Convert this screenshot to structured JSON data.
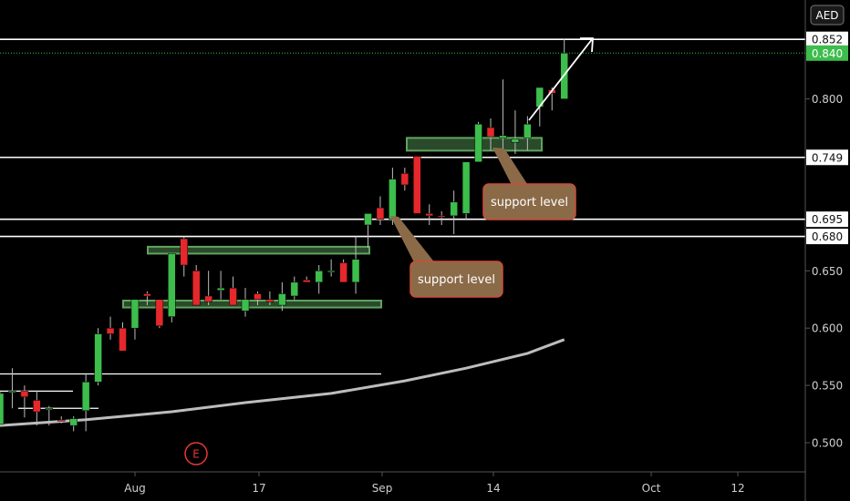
{
  "currency": "AED",
  "colors": {
    "background": "#000000",
    "up": "#3dbd4c",
    "down": "#e5282b",
    "support_zone": "#5fa45f",
    "note_fill": "#8b6a48",
    "note_border": "#d24a3c",
    "moving_average": "#bdbdbd",
    "lines": "#ffffff",
    "last_price": "#3dbd4c",
    "earnings": "#e53935"
  },
  "chart_data": {
    "type": "candlestick",
    "price_unit": "AED",
    "x_axis_labels": [
      "Aug",
      "17",
      "Sep",
      "14",
      "Oct",
      "12"
    ],
    "y_axis_ticks": [
      "0.500",
      "0.550",
      "0.600",
      "0.650",
      "0.800"
    ],
    "y_range": [
      0.475,
      0.878
    ],
    "horizontal_levels": [
      {
        "value": 0.852,
        "label": "0.852"
      },
      {
        "value": 0.749,
        "label": "0.749"
      },
      {
        "value": 0.695,
        "label": "0.695"
      },
      {
        "value": 0.68,
        "label": "0.680"
      }
    ],
    "last_price": {
      "value": 0.84,
      "label": "0.840"
    },
    "candles": [
      {
        "date": "Jul 27",
        "open": 0.516,
        "high": 0.545,
        "low": 0.515,
        "close": 0.543
      },
      {
        "date": "Jul 28",
        "open": 0.545,
        "high": 0.565,
        "low": 0.53,
        "close": 0.545
      },
      {
        "date": "Jul 29",
        "open": 0.545,
        "high": 0.55,
        "low": 0.522,
        "close": 0.54
      },
      {
        "date": "Jul 30",
        "open": 0.537,
        "high": 0.545,
        "low": 0.515,
        "close": 0.527
      },
      {
        "date": "Jul 31",
        "open": 0.53,
        "high": 0.532,
        "low": 0.515,
        "close": 0.53
      },
      {
        "date": "Aug 03",
        "open": 0.52,
        "high": 0.523,
        "low": 0.517,
        "close": 0.519
      },
      {
        "date": "Aug 04",
        "open": 0.515,
        "high": 0.523,
        "low": 0.51,
        "close": 0.521
      },
      {
        "date": "Aug 05",
        "open": 0.528,
        "high": 0.56,
        "low": 0.51,
        "close": 0.553
      },
      {
        "date": "Aug 06",
        "open": 0.553,
        "high": 0.6,
        "low": 0.55,
        "close": 0.595
      },
      {
        "date": "Aug 07",
        "open": 0.6,
        "high": 0.61,
        "low": 0.59,
        "close": 0.595
      },
      {
        "date": "Aug 10",
        "open": 0.6,
        "high": 0.605,
        "low": 0.58,
        "close": 0.58
      },
      {
        "date": "Aug 11",
        "open": 0.6,
        "high": 0.625,
        "low": 0.59,
        "close": 0.625
      },
      {
        "date": "Aug 12",
        "open": 0.63,
        "high": 0.632,
        "low": 0.62,
        "close": 0.628
      },
      {
        "date": "Aug 13",
        "open": 0.625,
        "high": 0.625,
        "low": 0.6,
        "close": 0.602
      },
      {
        "date": "Aug 14",
        "open": 0.61,
        "high": 0.665,
        "low": 0.605,
        "close": 0.665
      },
      {
        "date": "Aug 17",
        "open": 0.678,
        "high": 0.68,
        "low": 0.645,
        "close": 0.655
      },
      {
        "date": "Aug 18",
        "open": 0.65,
        "high": 0.655,
        "low": 0.62,
        "close": 0.62
      },
      {
        "date": "Aug 19",
        "open": 0.628,
        "high": 0.65,
        "low": 0.62,
        "close": 0.623
      },
      {
        "date": "Aug 20",
        "open": 0.633,
        "high": 0.65,
        "low": 0.625,
        "close": 0.635
      },
      {
        "date": "Aug 21",
        "open": 0.635,
        "high": 0.645,
        "low": 0.62,
        "close": 0.62
      },
      {
        "date": "Aug 24",
        "open": 0.615,
        "high": 0.635,
        "low": 0.61,
        "close": 0.625
      },
      {
        "date": "Aug 25",
        "open": 0.63,
        "high": 0.632,
        "low": 0.62,
        "close": 0.625
      },
      {
        "date": "Aug 26",
        "open": 0.625,
        "high": 0.632,
        "low": 0.62,
        "close": 0.623
      },
      {
        "date": "Aug 27",
        "open": 0.62,
        "high": 0.64,
        "low": 0.615,
        "close": 0.63
      },
      {
        "date": "Aug 28",
        "open": 0.628,
        "high": 0.645,
        "low": 0.625,
        "close": 0.64
      },
      {
        "date": "Aug 31",
        "open": 0.642,
        "high": 0.645,
        "low": 0.64,
        "close": 0.64
      },
      {
        "date": "Sep 01",
        "open": 0.64,
        "high": 0.655,
        "low": 0.63,
        "close": 0.65
      },
      {
        "date": "Sep 02",
        "open": 0.65,
        "high": 0.66,
        "low": 0.645,
        "close": 0.65
      },
      {
        "date": "Sep 03",
        "open": 0.657,
        "high": 0.66,
        "low": 0.64,
        "close": 0.64
      },
      {
        "date": "Sep 04",
        "open": 0.64,
        "high": 0.68,
        "low": 0.63,
        "close": 0.66
      },
      {
        "date": "Sep 07",
        "open": 0.69,
        "high": 0.7,
        "low": 0.67,
        "close": 0.7
      },
      {
        "date": "Sep 08",
        "open": 0.705,
        "high": 0.715,
        "low": 0.69,
        "close": 0.695
      },
      {
        "date": "Sep 09",
        "open": 0.695,
        "high": 0.74,
        "low": 0.69,
        "close": 0.73
      },
      {
        "date": "Sep 10",
        "open": 0.735,
        "high": 0.74,
        "low": 0.72,
        "close": 0.725
      },
      {
        "date": "Sep 11",
        "open": 0.75,
        "high": 0.75,
        "low": 0.7,
        "close": 0.7
      },
      {
        "date": "Sep 14",
        "open": 0.7,
        "high": 0.708,
        "low": 0.69,
        "close": 0.698
      },
      {
        "date": "Sep 15",
        "open": 0.698,
        "high": 0.702,
        "low": 0.69,
        "close": 0.697
      },
      {
        "date": "Sep 16",
        "open": 0.698,
        "high": 0.72,
        "low": 0.682,
        "close": 0.71
      },
      {
        "date": "Sep 17",
        "open": 0.7,
        "high": 0.745,
        "low": 0.695,
        "close": 0.745
      },
      {
        "date": "Sep 18",
        "open": 0.745,
        "high": 0.78,
        "low": 0.745,
        "close": 0.778
      },
      {
        "date": "Sep 21",
        "open": 0.775,
        "high": 0.783,
        "low": 0.755,
        "close": 0.767
      },
      {
        "date": "Sep 22",
        "open": 0.766,
        "high": 0.817,
        "low": 0.752,
        "close": 0.768
      },
      {
        "date": "Sep 23",
        "open": 0.762,
        "high": 0.79,
        "low": 0.752,
        "close": 0.765
      },
      {
        "date": "Sep 24",
        "open": 0.766,
        "high": 0.785,
        "low": 0.755,
        "close": 0.778
      },
      {
        "date": "Sep 25",
        "open": 0.793,
        "high": 0.81,
        "low": 0.776,
        "close": 0.81
      },
      {
        "date": "Sep 28",
        "open": 0.808,
        "high": 0.81,
        "low": 0.79,
        "close": 0.805
      },
      {
        "date": "Sep 29",
        "open": 0.8,
        "high": 0.852,
        "low": 0.8,
        "close": 0.84
      }
    ],
    "moving_average": [
      {
        "date": "Jul 27",
        "value": 0.515
      },
      {
        "date": "Aug 05",
        "value": 0.52
      },
      {
        "date": "Aug 14",
        "value": 0.527
      },
      {
        "date": "Aug 24",
        "value": 0.535
      },
      {
        "date": "Sep 02",
        "value": 0.543
      },
      {
        "date": "Sep 10",
        "value": 0.554
      },
      {
        "date": "Sep 17",
        "value": 0.565
      },
      {
        "date": "Sep 24",
        "value": 0.578
      },
      {
        "date": "Sep 29",
        "value": 0.59
      }
    ],
    "annotations": {
      "support_zones": [
        {
          "start": "Aug 13",
          "end": "Sep 04",
          "low": 0.618,
          "high": 0.624
        },
        {
          "start": "Aug 14",
          "end": "Sep 04",
          "low": 0.665,
          "high": 0.671
        },
        {
          "start": "Sep 09",
          "end": "Sep 25",
          "low": 0.76,
          "high": 0.766
        }
      ],
      "notes": [
        {
          "text": "support level"
        },
        {
          "text": "support level"
        }
      ],
      "earnings_marker": "E"
    }
  }
}
